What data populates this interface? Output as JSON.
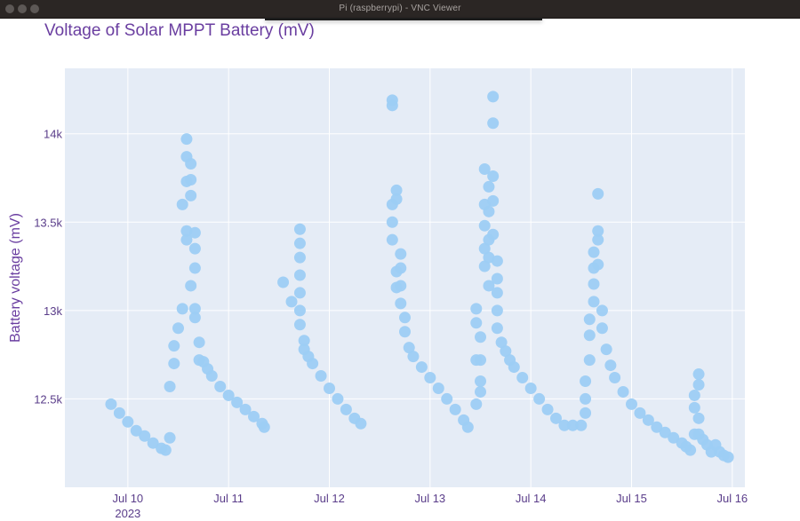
{
  "window": {
    "title": "Pi (raspberrypi) - VNC Viewer"
  },
  "colors": {
    "marker": "#9dcdf4",
    "plot_bg": "#e5ecf6",
    "grid": "#ffffff",
    "text": "#5a3d8a",
    "title": "#6a3ea0"
  },
  "chart_data": {
    "type": "scatter",
    "title": "Voltage of Solar MPPT Battery (mV)",
    "xlabel": "",
    "ylabel": "Battery voltage (mV)",
    "xlim": [
      "2023-07-09 09:00",
      "2023-07-16 03:00"
    ],
    "ylim": [
      12000,
      14370
    ],
    "grid": true,
    "x_ticks": [
      {
        "value": "2023-07-10",
        "label": "Jul 10",
        "sublabel": "2023"
      },
      {
        "value": "2023-07-11",
        "label": "Jul 11"
      },
      {
        "value": "2023-07-12",
        "label": "Jul 12"
      },
      {
        "value": "2023-07-13",
        "label": "Jul 13"
      },
      {
        "value": "2023-07-14",
        "label": "Jul 14"
      },
      {
        "value": "2023-07-15",
        "label": "Jul 15"
      },
      {
        "value": "2023-07-16",
        "label": "Jul 16"
      }
    ],
    "y_ticks": [
      {
        "value": 12500,
        "label": "12.5k"
      },
      {
        "value": 13000,
        "label": "13k"
      },
      {
        "value": 13500,
        "label": "13.5k"
      },
      {
        "value": 14000,
        "label": "14k"
      }
    ],
    "series": [
      {
        "points": [
          [
            "2023-07-09 20:00",
            12470
          ],
          [
            "2023-07-09 22:00",
            12420
          ],
          [
            "2023-07-10 00:00",
            12370
          ],
          [
            "2023-07-10 02:00",
            12320
          ],
          [
            "2023-07-10 04:00",
            12290
          ],
          [
            "2023-07-10 06:00",
            12250
          ],
          [
            "2023-07-10 08:00",
            12220
          ],
          [
            "2023-07-10 09:00",
            12210
          ],
          [
            "2023-07-10 10:00",
            12280
          ],
          [
            "2023-07-10 10:00",
            12570
          ],
          [
            "2023-07-10 11:00",
            12700
          ],
          [
            "2023-07-10 11:00",
            12800
          ],
          [
            "2023-07-10 12:00",
            12900
          ],
          [
            "2023-07-10 13:00",
            13010
          ],
          [
            "2023-07-10 13:00",
            13600
          ],
          [
            "2023-07-10 14:00",
            13730
          ],
          [
            "2023-07-10 14:00",
            13870
          ],
          [
            "2023-07-10 14:00",
            13970
          ],
          [
            "2023-07-10 14:00",
            13450
          ],
          [
            "2023-07-10 14:00",
            13400
          ],
          [
            "2023-07-10 15:00",
            13140
          ],
          [
            "2023-07-10 15:00",
            13740
          ],
          [
            "2023-07-10 15:00",
            13650
          ],
          [
            "2023-07-10 15:00",
            13830
          ],
          [
            "2023-07-10 16:00",
            13240
          ],
          [
            "2023-07-10 16:00",
            13440
          ],
          [
            "2023-07-10 16:00",
            13350
          ],
          [
            "2023-07-10 16:00",
            13010
          ],
          [
            "2023-07-10 16:00",
            12960
          ],
          [
            "2023-07-10 17:00",
            12820
          ],
          [
            "2023-07-10 17:00",
            12720
          ],
          [
            "2023-07-10 18:00",
            12710
          ],
          [
            "2023-07-10 19:00",
            12670
          ],
          [
            "2023-07-10 20:00",
            12630
          ],
          [
            "2023-07-10 22:00",
            12570
          ],
          [
            "2023-07-11 00:00",
            12520
          ],
          [
            "2023-07-11 02:00",
            12480
          ],
          [
            "2023-07-11 04:00",
            12440
          ],
          [
            "2023-07-11 06:00",
            12400
          ],
          [
            "2023-07-11 08:00",
            12360
          ],
          [
            "2023-07-11 08:30",
            12340
          ],
          [
            "2023-07-11 13:00",
            13160
          ],
          [
            "2023-07-11 15:00",
            13050
          ],
          [
            "2023-07-11 17:00",
            13460
          ],
          [
            "2023-07-11 17:00",
            13380
          ],
          [
            "2023-07-11 17:00",
            13300
          ],
          [
            "2023-07-11 17:00",
            13200
          ],
          [
            "2023-07-11 17:00",
            13100
          ],
          [
            "2023-07-11 17:00",
            13000
          ],
          [
            "2023-07-11 17:00",
            12920
          ],
          [
            "2023-07-11 18:00",
            12830
          ],
          [
            "2023-07-11 18:00",
            12780
          ],
          [
            "2023-07-11 19:00",
            12740
          ],
          [
            "2023-07-11 20:00",
            12700
          ],
          [
            "2023-07-11 22:00",
            12630
          ],
          [
            "2023-07-12 00:00",
            12560
          ],
          [
            "2023-07-12 02:00",
            12500
          ],
          [
            "2023-07-12 04:00",
            12440
          ],
          [
            "2023-07-12 06:00",
            12390
          ],
          [
            "2023-07-12 07:30",
            12360
          ],
          [
            "2023-07-12 15:00",
            14190
          ],
          [
            "2023-07-12 15:00",
            14160
          ],
          [
            "2023-07-12 15:00",
            13400
          ],
          [
            "2023-07-12 15:00",
            13500
          ],
          [
            "2023-07-12 15:00",
            13600
          ],
          [
            "2023-07-12 16:00",
            13680
          ],
          [
            "2023-07-12 16:00",
            13630
          ],
          [
            "2023-07-12 16:00",
            13220
          ],
          [
            "2023-07-12 16:00",
            13130
          ],
          [
            "2023-07-12 17:00",
            13320
          ],
          [
            "2023-07-12 17:00",
            13240
          ],
          [
            "2023-07-12 17:00",
            13140
          ],
          [
            "2023-07-12 17:00",
            13040
          ],
          [
            "2023-07-12 18:00",
            12960
          ],
          [
            "2023-07-12 18:00",
            12880
          ],
          [
            "2023-07-12 19:00",
            12790
          ],
          [
            "2023-07-12 20:00",
            12740
          ],
          [
            "2023-07-12 22:00",
            12680
          ],
          [
            "2023-07-13 00:00",
            12620
          ],
          [
            "2023-07-13 02:00",
            12560
          ],
          [
            "2023-07-13 04:00",
            12500
          ],
          [
            "2023-07-13 06:00",
            12440
          ],
          [
            "2023-07-13 08:00",
            12380
          ],
          [
            "2023-07-13 09:00",
            12340
          ],
          [
            "2023-07-13 11:00",
            12470
          ],
          [
            "2023-07-13 11:00",
            12720
          ],
          [
            "2023-07-13 11:00",
            12930
          ],
          [
            "2023-07-13 11:00",
            13010
          ],
          [
            "2023-07-13 12:00",
            12600
          ],
          [
            "2023-07-13 12:00",
            12540
          ],
          [
            "2023-07-13 12:00",
            12720
          ],
          [
            "2023-07-13 12:00",
            12850
          ],
          [
            "2023-07-13 13:00",
            13800
          ],
          [
            "2023-07-13 13:00",
            13480
          ],
          [
            "2023-07-13 13:00",
            13350
          ],
          [
            "2023-07-13 13:00",
            13250
          ],
          [
            "2023-07-13 13:00",
            13600
          ],
          [
            "2023-07-13 14:00",
            13700
          ],
          [
            "2023-07-13 14:00",
            13560
          ],
          [
            "2023-07-13 14:00",
            13400
          ],
          [
            "2023-07-13 14:00",
            13140
          ],
          [
            "2023-07-13 14:00",
            13300
          ],
          [
            "2023-07-13 15:00",
            14210
          ],
          [
            "2023-07-13 15:00",
            14060
          ],
          [
            "2023-07-13 15:00",
            13760
          ],
          [
            "2023-07-13 15:00",
            13620
          ],
          [
            "2023-07-13 15:00",
            13430
          ],
          [
            "2023-07-13 16:00",
            13280
          ],
          [
            "2023-07-13 16:00",
            13180
          ],
          [
            "2023-07-13 16:00",
            13100
          ],
          [
            "2023-07-13 16:00",
            13000
          ],
          [
            "2023-07-13 16:00",
            12900
          ],
          [
            "2023-07-13 17:00",
            12820
          ],
          [
            "2023-07-13 18:00",
            12770
          ],
          [
            "2023-07-13 19:00",
            12720
          ],
          [
            "2023-07-13 20:00",
            12680
          ],
          [
            "2023-07-13 22:00",
            12620
          ],
          [
            "2023-07-14 00:00",
            12560
          ],
          [
            "2023-07-14 02:00",
            12500
          ],
          [
            "2023-07-14 04:00",
            12440
          ],
          [
            "2023-07-14 06:00",
            12390
          ],
          [
            "2023-07-14 08:00",
            12350
          ],
          [
            "2023-07-14 10:00",
            12350
          ],
          [
            "2023-07-14 12:00",
            12350
          ],
          [
            "2023-07-14 13:00",
            12420
          ],
          [
            "2023-07-14 13:00",
            12500
          ],
          [
            "2023-07-14 13:00",
            12600
          ],
          [
            "2023-07-14 14:00",
            12720
          ],
          [
            "2023-07-14 14:00",
            12860
          ],
          [
            "2023-07-14 14:00",
            12950
          ],
          [
            "2023-07-14 15:00",
            13050
          ],
          [
            "2023-07-14 15:00",
            13150
          ],
          [
            "2023-07-14 15:00",
            13240
          ],
          [
            "2023-07-14 15:00",
            13330
          ],
          [
            "2023-07-14 16:00",
            13450
          ],
          [
            "2023-07-14 16:00",
            13660
          ],
          [
            "2023-07-14 16:00",
            13400
          ],
          [
            "2023-07-14 16:00",
            13260
          ],
          [
            "2023-07-14 17:00",
            13000
          ],
          [
            "2023-07-14 17:00",
            12900
          ],
          [
            "2023-07-14 18:00",
            12780
          ],
          [
            "2023-07-14 19:00",
            12690
          ],
          [
            "2023-07-14 20:00",
            12620
          ],
          [
            "2023-07-14 22:00",
            12540
          ],
          [
            "2023-07-15 00:00",
            12470
          ],
          [
            "2023-07-15 02:00",
            12420
          ],
          [
            "2023-07-15 04:00",
            12380
          ],
          [
            "2023-07-15 06:00",
            12340
          ],
          [
            "2023-07-15 08:00",
            12310
          ],
          [
            "2023-07-15 10:00",
            12280
          ],
          [
            "2023-07-15 12:00",
            12250
          ],
          [
            "2023-07-15 13:00",
            12230
          ],
          [
            "2023-07-15 14:00",
            12210
          ],
          [
            "2023-07-15 15:00",
            12300
          ],
          [
            "2023-07-15 15:00",
            12450
          ],
          [
            "2023-07-15 15:00",
            12520
          ],
          [
            "2023-07-15 16:00",
            12640
          ],
          [
            "2023-07-15 16:00",
            12580
          ],
          [
            "2023-07-15 16:00",
            12390
          ],
          [
            "2023-07-15 16:00",
            12300
          ],
          [
            "2023-07-15 17:00",
            12270
          ],
          [
            "2023-07-15 18:00",
            12240
          ],
          [
            "2023-07-15 19:00",
            12200
          ],
          [
            "2023-07-15 20:00",
            12240
          ],
          [
            "2023-07-15 21:00",
            12200
          ],
          [
            "2023-07-15 22:00",
            12180
          ],
          [
            "2023-07-15 23:00",
            12170
          ]
        ]
      }
    ]
  }
}
